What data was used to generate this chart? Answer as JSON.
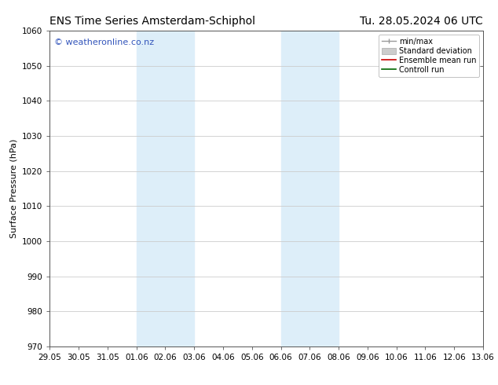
{
  "title_left": "ENS Time Series Amsterdam-Schiphol",
  "title_right": "Tu. 28.05.2024 06 UTC",
  "ylabel": "Surface Pressure (hPa)",
  "ylim": [
    970,
    1060
  ],
  "yticks": [
    970,
    980,
    990,
    1000,
    1010,
    1020,
    1030,
    1040,
    1050,
    1060
  ],
  "x_tick_labels": [
    "29.05",
    "30.05",
    "31.05",
    "01.06",
    "02.06",
    "03.06",
    "04.06",
    "05.06",
    "06.06",
    "07.06",
    "08.06",
    "09.06",
    "10.06",
    "11.06",
    "12.06",
    "13.06"
  ],
  "x_tick_positions": [
    0,
    1,
    2,
    3,
    4,
    5,
    6,
    7,
    8,
    9,
    10,
    11,
    12,
    13,
    14,
    15
  ],
  "shaded_regions": [
    {
      "x_start": 3,
      "x_end": 5,
      "color": "#ddeef9"
    },
    {
      "x_start": 8,
      "x_end": 10,
      "color": "#ddeef9"
    }
  ],
  "watermark_text": "© weatheronline.co.nz",
  "watermark_color": "#3355bb",
  "watermark_fontsize": 8,
  "bg_color": "#ffffff",
  "grid_color": "#cccccc",
  "title_fontsize": 10,
  "axis_fontsize": 8,
  "tick_fontsize": 7.5,
  "legend_fontsize": 7
}
